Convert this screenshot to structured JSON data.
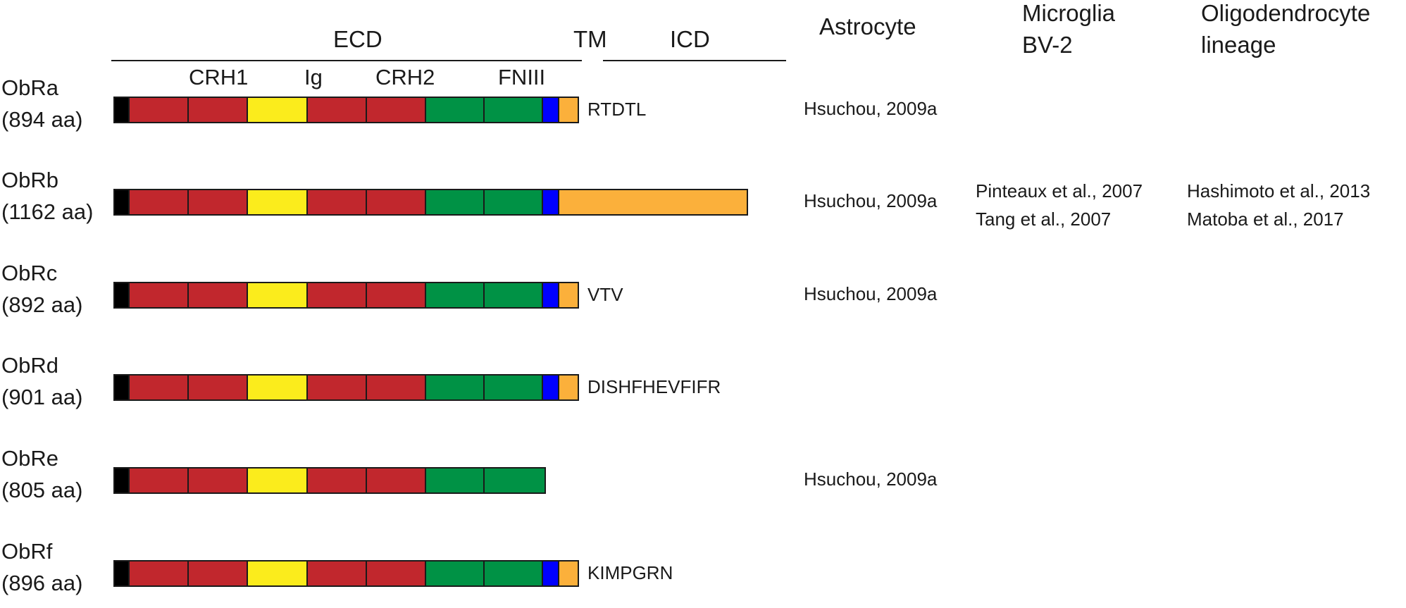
{
  "headers": {
    "ecd": "ECD",
    "tm": "TM",
    "icd": "ICD",
    "astrocyte": "Astrocyte",
    "microglia_line1": "Microglia",
    "microglia_line2": "BV-2",
    "oligo_line1": "Oligodendrocyte",
    "oligo_line2": "lineage"
  },
  "domain_labels": {
    "crh1": "CRH1",
    "ig": "Ig",
    "crh2": "CRH2",
    "fniii": "FNIII"
  },
  "colors": {
    "signal": "#000000",
    "crh": "#c1272d",
    "ig": "#fbec1c",
    "fniii": "#009245",
    "tm": "#0000ff",
    "icd": "#fbb03b",
    "outline": "#1a1a1a"
  },
  "isoforms": [
    {
      "name": "ObRa",
      "length": "(894 aa)",
      "segments": [
        "signal",
        "crh",
        "crh",
        "ig",
        "crh",
        "crh",
        "fniii",
        "fniii",
        "tm",
        "icd-short"
      ],
      "tail": "RTDTL",
      "astrocyte": [
        "Hsuchou, 2009a"
      ],
      "microglia": [],
      "oligodendrocyte": []
    },
    {
      "name": "ObRb",
      "length": "(1162 aa)",
      "segments": [
        "signal",
        "crh",
        "crh",
        "ig",
        "crh",
        "crh",
        "fniii",
        "fniii",
        "tm",
        "icd-long"
      ],
      "tail": "",
      "astrocyte": [
        "Hsuchou, 2009a"
      ],
      "microglia": [
        "Pinteaux et al., 2007",
        "Tang et al., 2007"
      ],
      "oligodendrocyte": [
        "Hashimoto et al., 2013",
        "Matoba et al., 2017"
      ]
    },
    {
      "name": "ObRc",
      "length": "(892 aa)",
      "segments": [
        "signal",
        "crh",
        "crh",
        "ig",
        "crh",
        "crh",
        "fniii",
        "fniii",
        "tm",
        "icd-short"
      ],
      "tail": "VTV",
      "astrocyte": [
        "Hsuchou, 2009a"
      ],
      "microglia": [],
      "oligodendrocyte": []
    },
    {
      "name": "ObRd",
      "length": "(901 aa)",
      "segments": [
        "signal",
        "crh",
        "crh",
        "ig",
        "crh",
        "crh",
        "fniii",
        "fniii",
        "tm",
        "icd-short"
      ],
      "tail": "DISHFHEVFIFR",
      "astrocyte": [],
      "microglia": [],
      "oligodendrocyte": []
    },
    {
      "name": "ObRe",
      "length": "(805 aa)",
      "segments": [
        "signal",
        "crh",
        "crh",
        "ig",
        "crh",
        "crh",
        "fniii",
        "fniii"
      ],
      "tail": "",
      "astrocyte": [
        "Hsuchou, 2009a"
      ],
      "microglia": [],
      "oligodendrocyte": []
    },
    {
      "name": "ObRf",
      "length": "(896 aa)",
      "segments": [
        "signal",
        "crh",
        "crh",
        "ig",
        "crh",
        "crh",
        "fniii",
        "fniii",
        "tm",
        "icd-short"
      ],
      "tail": "KIMPGRN",
      "astrocyte": [],
      "microglia": [],
      "oligodendrocyte": []
    }
  ]
}
